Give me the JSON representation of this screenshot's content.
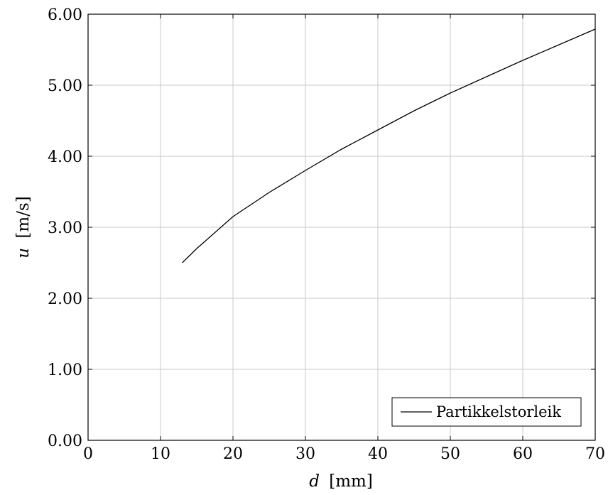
{
  "chart_data": {
    "type": "line",
    "title": "",
    "xlabel": {
      "var": "d",
      "unit": "[mm]"
    },
    "ylabel": {
      "var": "u",
      "unit": "[m/s]"
    },
    "xlim": [
      0,
      70
    ],
    "ylim": [
      0,
      6
    ],
    "xticks": [
      0,
      10,
      20,
      30,
      40,
      50,
      60,
      70
    ],
    "xtick_labels": [
      "0",
      "10",
      "20",
      "30",
      "40",
      "50",
      "60",
      "70"
    ],
    "yticks": [
      0,
      1,
      2,
      3,
      4,
      5,
      6
    ],
    "ytick_labels": [
      "0.00",
      "1.00",
      "2.00",
      "3.00",
      "4.00",
      "5.00",
      "6.00"
    ],
    "grid": true,
    "legend_position": "bottom-right",
    "series": [
      {
        "name": "Partikkelstorleik",
        "color": "#000000",
        "x": [
          13,
          15,
          20,
          25,
          30,
          35,
          40,
          45,
          50,
          55,
          60,
          65,
          70
        ],
        "y": [
          2.5,
          2.7,
          3.15,
          3.49,
          3.8,
          4.1,
          4.37,
          4.64,
          4.89,
          5.12,
          5.35,
          5.57,
          5.79
        ]
      }
    ]
  }
}
